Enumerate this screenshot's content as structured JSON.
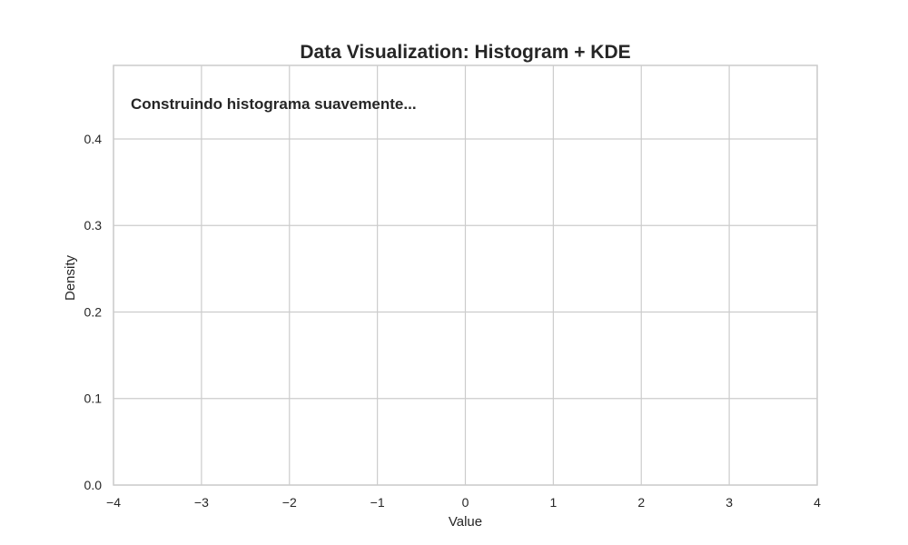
{
  "chart_data": {
    "type": "bar",
    "title": "Data Visualization: Histogram + KDE",
    "xlabel": "Value",
    "ylabel": "Density",
    "xlim": [
      -4,
      4
    ],
    "ylim": [
      0,
      0.485
    ],
    "x_ticks": [
      -4,
      -3,
      -2,
      -1,
      0,
      1,
      2,
      3,
      4
    ],
    "x_tick_labels": [
      "−4",
      "−3",
      "−2",
      "−1",
      "0",
      "1",
      "2",
      "3",
      "4"
    ],
    "y_ticks": [
      0.0,
      0.1,
      0.2,
      0.3,
      0.4
    ],
    "y_tick_labels": [
      "0.0",
      "0.1",
      "0.2",
      "0.3",
      "0.4"
    ],
    "grid": true,
    "series": [],
    "annotation": "Construindo histograma suavemente..."
  },
  "colors": {
    "grid": "#cccccc",
    "frame": "#cccccc",
    "text": "#262626",
    "background": "#ffffff"
  }
}
